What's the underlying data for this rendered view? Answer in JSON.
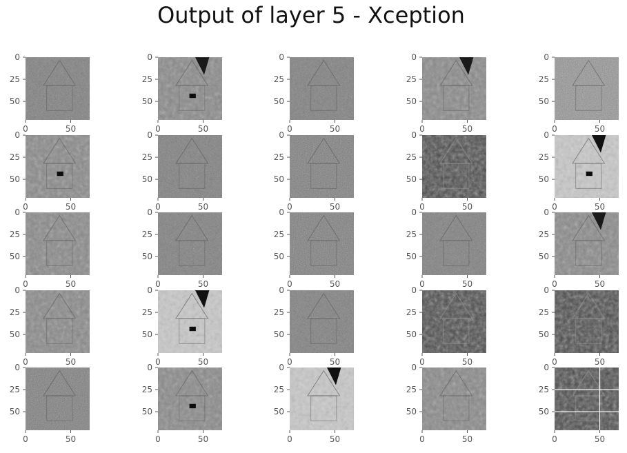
{
  "chart_data": {
    "type": "image_grid",
    "title": "Output of layer 5 - Xception",
    "rows": 5,
    "cols": 5,
    "image_size": [
      71,
      71
    ],
    "x_ticks": [
      "0",
      "50"
    ],
    "y_ticks": [
      "0",
      "25",
      "50"
    ],
    "grid": true,
    "colormap": "gray",
    "background_color": "#ffffff",
    "tick_color": "#555555",
    "panels": [
      {
        "row": 0,
        "col": 0,
        "style": "edge"
      },
      {
        "row": 0,
        "col": 1,
        "style": "smooth",
        "dark_corner": true,
        "dark_window": true
      },
      {
        "row": 0,
        "col": 2,
        "style": "edge"
      },
      {
        "row": 0,
        "col": 3,
        "style": "smooth",
        "dark_corner": true
      },
      {
        "row": 0,
        "col": 4,
        "style": "texture"
      },
      {
        "row": 1,
        "col": 0,
        "style": "smooth",
        "dark_window": true
      },
      {
        "row": 1,
        "col": 1,
        "style": "edge"
      },
      {
        "row": 1,
        "col": 2,
        "style": "detail"
      },
      {
        "row": 1,
        "col": 3,
        "style": "dark_photo"
      },
      {
        "row": 1,
        "col": 4,
        "style": "light",
        "dark_corner": true,
        "dark_window": true
      },
      {
        "row": 2,
        "col": 0,
        "style": "smooth"
      },
      {
        "row": 2,
        "col": 1,
        "style": "edge"
      },
      {
        "row": 2,
        "col": 2,
        "style": "detail"
      },
      {
        "row": 2,
        "col": 3,
        "style": "edge"
      },
      {
        "row": 2,
        "col": 4,
        "style": "smooth",
        "dark_corner": true
      },
      {
        "row": 3,
        "col": 0,
        "style": "smooth"
      },
      {
        "row": 3,
        "col": 1,
        "style": "light",
        "dark_corner": true,
        "dark_window": true
      },
      {
        "row": 3,
        "col": 2,
        "style": "edge"
      },
      {
        "row": 3,
        "col": 3,
        "style": "dark_photo"
      },
      {
        "row": 3,
        "col": 4,
        "style": "dark_photo"
      },
      {
        "row": 4,
        "col": 0,
        "style": "detail"
      },
      {
        "row": 4,
        "col": 1,
        "style": "smooth",
        "dark_window": true
      },
      {
        "row": 4,
        "col": 2,
        "style": "light",
        "dark_corner": true
      },
      {
        "row": 4,
        "col": 3,
        "style": "smooth"
      },
      {
        "row": 4,
        "col": 4,
        "style": "dark_photo"
      }
    ]
  }
}
